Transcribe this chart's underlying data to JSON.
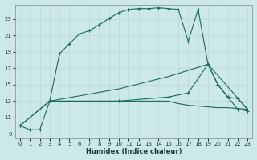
{
  "xlabel": "Humidex (Indice chaleur)",
  "bg_color": "#cce8e8",
  "line_color": "#1a6b5a",
  "grid_color": "#b8d8d4",
  "xlim": [
    -0.5,
    23.5
  ],
  "ylim": [
    8.5,
    24.8
  ],
  "yticks": [
    9,
    11,
    13,
    15,
    17,
    19,
    21,
    23
  ],
  "xticks": [
    0,
    1,
    2,
    3,
    4,
    5,
    6,
    7,
    8,
    9,
    10,
    11,
    12,
    13,
    14,
    15,
    16,
    17,
    18,
    19,
    20,
    21,
    22,
    23
  ],
  "line1_x": [
    0,
    1,
    2,
    3,
    4,
    5,
    6,
    7,
    8,
    9,
    10,
    11,
    12,
    13,
    14,
    15,
    16,
    17,
    18,
    19,
    20,
    21,
    22,
    23
  ],
  "line1_y": [
    10.0,
    9.5,
    9.5,
    13.0,
    18.8,
    20.0,
    21.2,
    21.6,
    22.3,
    23.1,
    23.8,
    24.2,
    24.3,
    24.3,
    24.4,
    24.3,
    24.2,
    20.3,
    24.2,
    17.5,
    15.0,
    13.5,
    12.0,
    11.8
  ],
  "line2_x": [
    3,
    4,
    5,
    6,
    7,
    8,
    9,
    10,
    11,
    12,
    13,
    14,
    15,
    16,
    17,
    18,
    19,
    20,
    21,
    22,
    23
  ],
  "line2_y": [
    13.0,
    13.0,
    13.0,
    13.0,
    13.0,
    13.0,
    13.0,
    13.0,
    13.0,
    13.0,
    13.0,
    13.0,
    13.0,
    12.7,
    12.5,
    12.4,
    12.3,
    12.2,
    12.2,
    12.1,
    12.0
  ],
  "line3_x": [
    0,
    3,
    10,
    15,
    17,
    19,
    20,
    21,
    22,
    23
  ],
  "line3_y": [
    10.0,
    13.0,
    13.0,
    13.5,
    14.0,
    17.5,
    15.0,
    13.5,
    13.3,
    12.0
  ],
  "line4_x": [
    0,
    3,
    10,
    15,
    19,
    23
  ],
  "line4_y": [
    10.0,
    13.0,
    14.5,
    16.0,
    17.5,
    12.0
  ]
}
